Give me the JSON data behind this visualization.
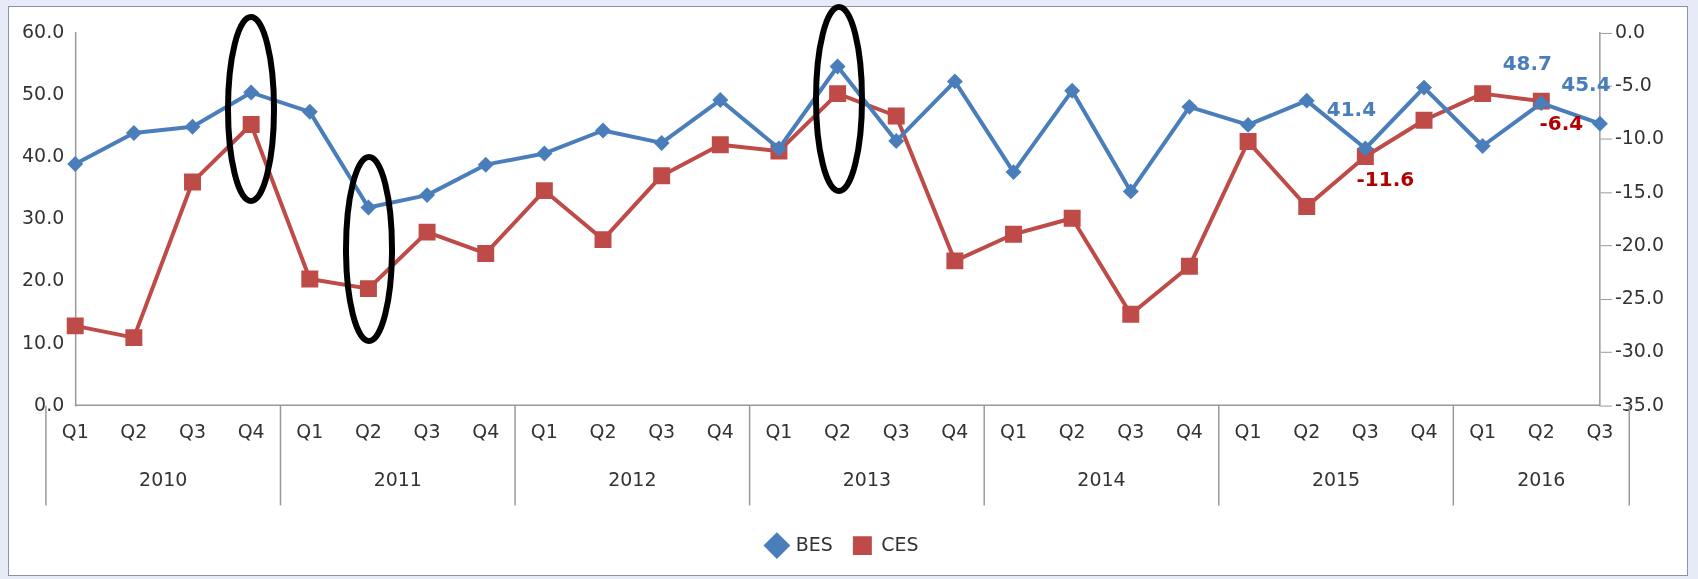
{
  "chart_data": {
    "type": "line",
    "categories": [
      "Q1",
      "Q2",
      "Q3",
      "Q4",
      "Q1",
      "Q2",
      "Q3",
      "Q4",
      "Q1",
      "Q2",
      "Q3",
      "Q4",
      "Q1",
      "Q2",
      "Q3",
      "Q4",
      "Q1",
      "Q2",
      "Q3",
      "Q4",
      "Q1",
      "Q2",
      "Q3",
      "Q4",
      "Q1",
      "Q2",
      "Q3"
    ],
    "annotations": [
      "2010",
      "2011",
      "2012",
      "2013",
      "2014",
      "2015",
      "2016"
    ],
    "series": [
      {
        "name": "BES",
        "color": "#4a7ebb",
        "marker": "diamond",
        "values": [
          38.9,
          43.9,
          44.9,
          50.4,
          47.3,
          31.9,
          33.9,
          38.8,
          40.6,
          44.3,
          42.3,
          49.2,
          41.4,
          54.6,
          42.6,
          52.2,
          37.6,
          50.7,
          34.5,
          48.1,
          45.2,
          49.1,
          41.4,
          51.2,
          41.8,
          48.7,
          45.4
        ],
        "value_labels": [
          null,
          null,
          null,
          null,
          null,
          null,
          null,
          null,
          null,
          null,
          null,
          null,
          null,
          null,
          null,
          null,
          null,
          null,
          null,
          null,
          null,
          null,
          "41.4",
          null,
          null,
          "48.7",
          "45.4"
        ]
      },
      {
        "name": "CES",
        "color": "#be4b48",
        "marker": "square",
        "axis": "y2",
        "values": [
          -27.5,
          -28.6,
          -14.0,
          -8.6,
          -23.1,
          -24.0,
          -18.7,
          -20.7,
          -14.8,
          -19.4,
          -13.4,
          -10.5,
          -11.1,
          -5.7,
          -7.8,
          -21.4,
          -18.9,
          -17.4,
          -26.4,
          -21.9,
          -10.2,
          -16.3,
          -11.6,
          -8.2,
          -5.7,
          -6.4,
          null
        ],
        "value_labels": [
          null,
          null,
          null,
          null,
          null,
          null,
          null,
          null,
          null,
          null,
          null,
          null,
          null,
          null,
          null,
          null,
          null,
          null,
          null,
          null,
          null,
          null,
          "-11.6",
          null,
          null,
          "-6.4",
          null
        ]
      }
    ],
    "ylim": [
      0,
      60
    ],
    "yticks": [
      {
        "value": 0,
        "label": "0.0"
      },
      {
        "value": 10,
        "label": "10.0"
      },
      {
        "value": 20,
        "label": "20.0"
      },
      {
        "value": 30,
        "label": "30.0"
      },
      {
        "value": 40,
        "label": "40.0"
      },
      {
        "value": 50,
        "label": "50.0"
      },
      {
        "value": 60,
        "label": "60.0"
      }
    ],
    "y2lim": [
      -35,
      0
    ],
    "y2ticks": [
      {
        "value": -35,
        "label": "-35.0"
      },
      {
        "value": -30,
        "label": "-30.0"
      },
      {
        "value": -25,
        "label": "-25.0"
      },
      {
        "value": -20,
        "label": "-20.0"
      },
      {
        "value": -15,
        "label": "-15.0"
      },
      {
        "value": -10,
        "label": "-10.0"
      },
      {
        "value": -5,
        "label": "-5.0"
      },
      {
        "value": 0,
        "label": "0.0"
      }
    ],
    "grid": false,
    "legend": "bottom",
    "line_style": "solid"
  }
}
